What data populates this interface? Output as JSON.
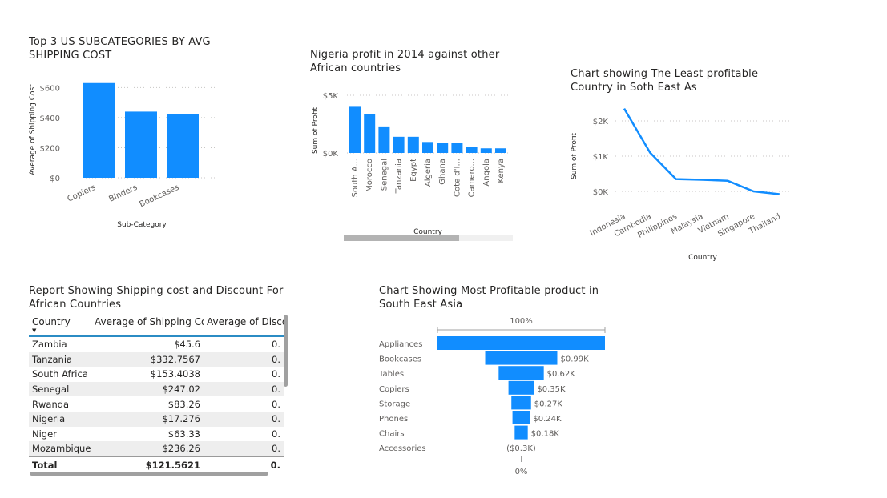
{
  "titles": {
    "shipping": "Top 3 US SUBCATEGORIES BY AVG\nSHIPPING COST",
    "nigeria": "Nigeria profit in 2014 against other\nAfrican countries",
    "sea": "Chart showing The Least profitable\nCountry in Soth East As",
    "table": "Report Showing Shipping cost and Discount For\nAfrican Countries",
    "funnel": "Chart Showing Most Profitable product in\nSouth East Asia"
  },
  "chart_data": [
    {
      "id": "shipping",
      "type": "bar",
      "title": "Top 3 US SUBCATEGORIES BY AVG SHIPPING COST",
      "xlabel": "Sub-Category",
      "ylabel": "Average of Shipping Cost",
      "categories": [
        "Copiers",
        "Binders",
        "Bookcases"
      ],
      "values": [
        630,
        440,
        425
      ],
      "ylim": [
        0,
        650
      ],
      "yticks": [
        0,
        200,
        400,
        600
      ],
      "ytick_labels": [
        "$0",
        "$200",
        "$400",
        "$600"
      ],
      "grid": true,
      "color": "#118DFF"
    },
    {
      "id": "nigeria",
      "type": "bar",
      "title": "Nigeria profit in 2014 against other African countries",
      "xlabel": "Country",
      "ylabel": "Sum of Profit",
      "categories": [
        "South A...",
        "Morocco",
        "Senegal",
        "Tanzania",
        "Egypt",
        "Algeria",
        "Ghana",
        "Cote d'I...",
        "Camero...",
        "Angola",
        "Kenya"
      ],
      "values": [
        4000,
        3400,
        2300,
        1400,
        1400,
        950,
        900,
        900,
        500,
        400,
        400
      ],
      "ylim": [
        0,
        5000
      ],
      "yticks": [
        0,
        5000
      ],
      "ytick_labels": [
        "$0K",
        "$5K"
      ],
      "grid": true,
      "color": "#118DFF"
    },
    {
      "id": "sea",
      "type": "line",
      "title": "Chart showing The Least profitable Country in Soth East As",
      "xlabel": "Country",
      "ylabel": "Sum of Profit",
      "categories": [
        "Indonesia",
        "Cambodia",
        "Philippines",
        "Malaysia",
        "Vietnam",
        "Singapore",
        "Thailand"
      ],
      "values": [
        2350,
        1100,
        350,
        330,
        300,
        0,
        -80
      ],
      "ylim": [
        -200,
        2500
      ],
      "yticks": [
        0,
        1000,
        2000
      ],
      "ytick_labels": [
        "$0K",
        "$1K",
        "$2K"
      ],
      "grid": true,
      "color": "#118DFF"
    },
    {
      "id": "funnel",
      "type": "bar",
      "title": "Chart Showing Most Profitable product in South East Asia",
      "categories": [
        "Appliances",
        "Bookcases",
        "Tables",
        "Copiers",
        "Storage",
        "Phones",
        "Chairs",
        "Accessories"
      ],
      "values": [
        2300,
        990,
        620,
        350,
        270,
        240,
        180,
        -300
      ],
      "value_labels": [
        "",
        "$0.99K",
        "$0.62K",
        "$0.35K",
        "$0.27K",
        "$0.24K",
        "$0.18K",
        "($0.3K)"
      ],
      "top_label": "100%",
      "bottom_label": "0%",
      "color": "#118DFF"
    }
  ],
  "table": {
    "columns": [
      "Country",
      "Average of Shipping Cost",
      "Average of Discou"
    ],
    "rows": [
      [
        "Zambia",
        "$45.6",
        "0."
      ],
      [
        "Tanzania",
        "$332.7567",
        "0."
      ],
      [
        "South Africa",
        "$153.4038",
        "0."
      ],
      [
        "Senegal",
        "$247.02",
        "0."
      ],
      [
        "Rwanda",
        "$83.26",
        "0."
      ],
      [
        "Nigeria",
        "$17.276",
        "0."
      ],
      [
        "Niger",
        "$63.33",
        "0."
      ],
      [
        "Mozambique",
        "$236.26",
        "0."
      ]
    ],
    "total": [
      "Total",
      "$121.5621",
      "0."
    ]
  }
}
